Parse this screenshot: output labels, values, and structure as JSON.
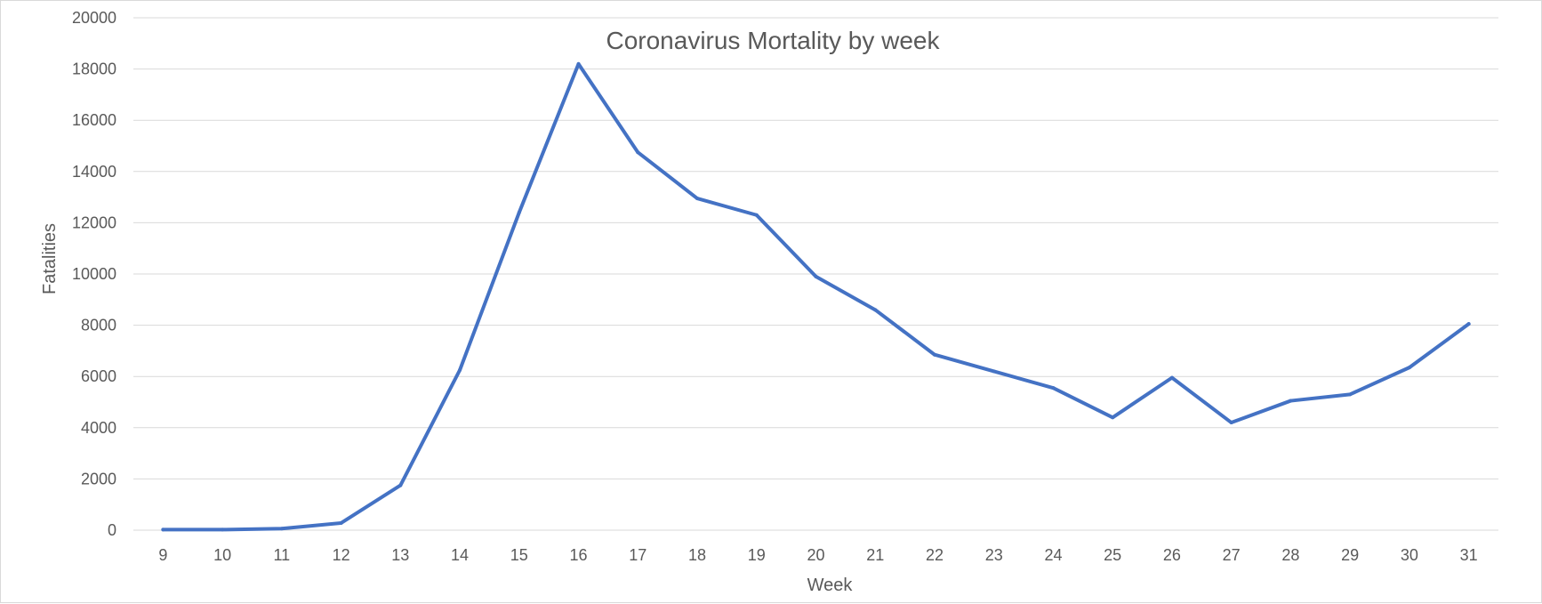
{
  "chart_data": {
    "type": "line",
    "title": "Coronavirus Mortality by week",
    "xlabel": "Week",
    "ylabel": "Fatalities",
    "x": [
      "9",
      "10",
      "11",
      "12",
      "13",
      "14",
      "15",
      "16",
      "17",
      "18",
      "19",
      "20",
      "21",
      "22",
      "23",
      "24",
      "25",
      "26",
      "27",
      "28",
      "29",
      "30",
      "31"
    ],
    "series": [
      {
        "name": "",
        "values": [
          20,
          20,
          60,
          280,
          1750,
          6250,
          12400,
          18200,
          14750,
          12950,
          12300,
          9900,
          8600,
          6850,
          6200,
          5550,
          4400,
          5950,
          4200,
          5050,
          5300,
          6350,
          8050
        ],
        "color": "#4472c4"
      }
    ],
    "ylim": [
      0,
      20000
    ],
    "yticks": [
      "0",
      "2000",
      "4000",
      "6000",
      "8000",
      "10000",
      "12000",
      "14000",
      "16000",
      "18000",
      "20000"
    ],
    "grid": true,
    "legend": "none",
    "colors": {
      "gridline": "#d9d9d9",
      "text": "#595959",
      "line": "#4472c4"
    }
  }
}
